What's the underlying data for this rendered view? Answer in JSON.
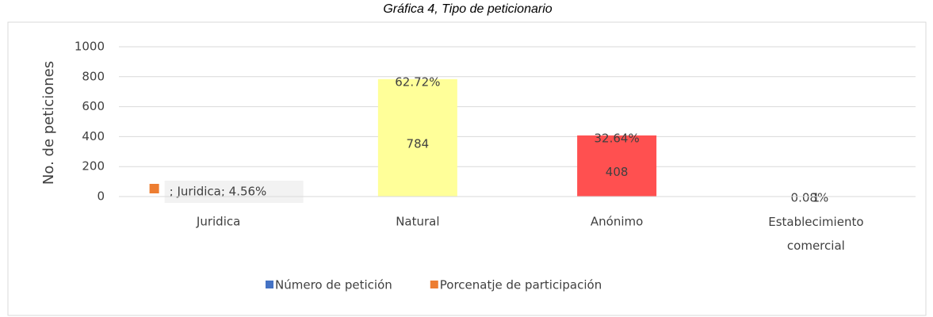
{
  "chart_data": {
    "type": "bar",
    "title": "Gráfica 4, Tipo de peticionario",
    "y_label": "No. de peticiones",
    "categories": [
      "Juridica",
      "Natural",
      "Anónimo",
      "Establecimiento comercial"
    ],
    "series": [
      {
        "name": "Número de petición",
        "color": "#4472c4",
        "values": [
          57,
          784,
          408,
          1
        ],
        "point_colors": [
          "#f2f2f2",
          "#ffff99",
          "#ff5050",
          "#ffffff"
        ]
      },
      {
        "name": "Porcenatje de participación",
        "color": "#ed7d31",
        "values": [
          4.56,
          62.72,
          32.64,
          0.08
        ],
        "value_labels": [
          "; Juridica; 4.56%",
          "62.72%",
          "32.64%",
          "0.08%"
        ]
      }
    ],
    "ylim": [
      0,
      1000
    ],
    "yticks": [
      0,
      200,
      400,
      600,
      800,
      1000
    ],
    "grid": true,
    "legend": "bottom"
  }
}
